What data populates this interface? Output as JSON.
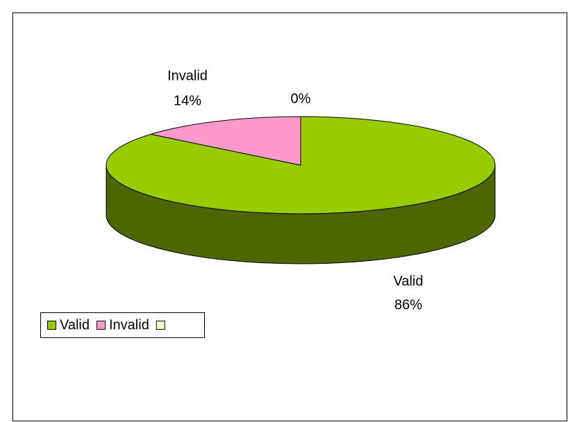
{
  "chart_data": {
    "type": "pie",
    "categories": [
      "Valid",
      "Invalid",
      null
    ],
    "values": [
      86,
      14,
      0
    ],
    "value_labels": [
      "86%",
      "14%",
      "0%"
    ],
    "colors": [
      "#99cc00",
      "#ff99cc",
      "#ffffcc"
    ],
    "legend": "bottom-left"
  }
}
